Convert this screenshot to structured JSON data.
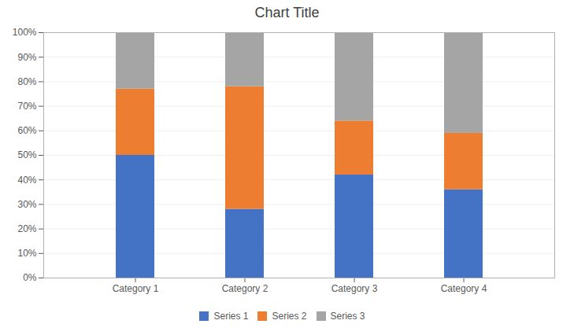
{
  "chart_data": {
    "type": "bar",
    "title": "Chart Title",
    "stacked": true,
    "categories": [
      "Category 1",
      "Category 2",
      "Category 3",
      "Category 4"
    ],
    "series": [
      {
        "name": "Series 1",
        "color": "#4472C4",
        "values": [
          0.5,
          0.28,
          0.42,
          0.36
        ]
      },
      {
        "name": "Series 2",
        "color": "#ED7D31",
        "values": [
          0.27,
          0.5,
          0.22,
          0.23
        ]
      },
      {
        "name": "Series 3",
        "color": "#A5A5A5",
        "values": [
          0.23,
          0.22,
          0.36,
          0.41
        ]
      }
    ],
    "ylim": [
      0,
      1.0
    ],
    "yticks": [
      {
        "value": 0.0,
        "label": "0%"
      },
      {
        "value": 0.1,
        "label": "10%"
      },
      {
        "value": 0.2,
        "label": "20%"
      },
      {
        "value": 0.3,
        "label": "30%"
      },
      {
        "value": 0.4,
        "label": "40%"
      },
      {
        "value": 0.5,
        "label": "50%"
      },
      {
        "value": 0.6,
        "label": "60%"
      },
      {
        "value": 0.7,
        "label": "70%"
      },
      {
        "value": 0.8,
        "label": "80%"
      },
      {
        "value": 0.9,
        "label": "90%"
      },
      {
        "value": 1.0,
        "label": "100%"
      }
    ],
    "grid": true,
    "legend": "bottom"
  }
}
